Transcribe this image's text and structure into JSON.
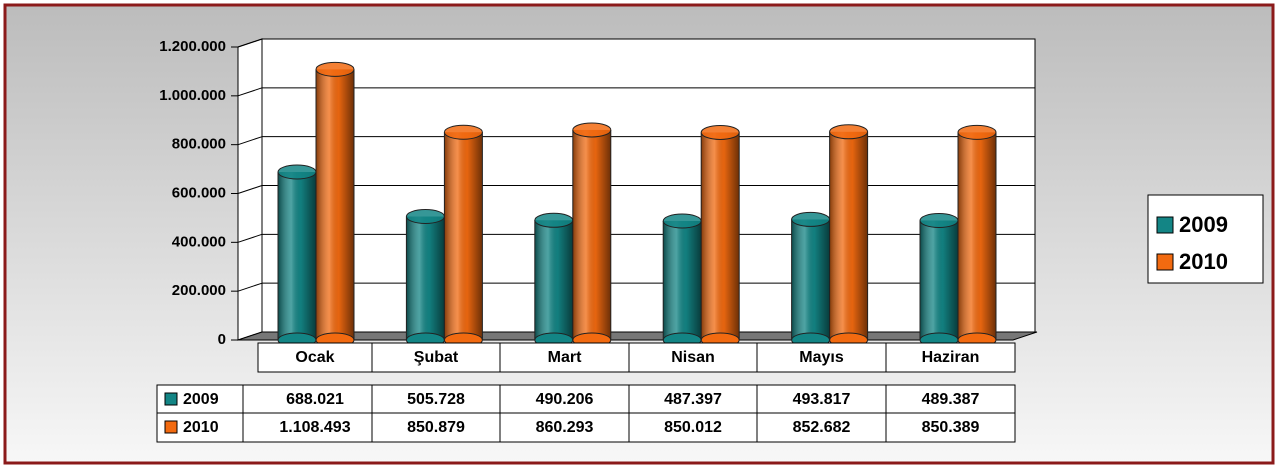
{
  "chart_data": {
    "type": "bar",
    "categories": [
      "Ocak",
      "Şubat",
      "Mart",
      "Nisan",
      "Mayıs",
      "Haziran"
    ],
    "series": [
      {
        "name": "2009",
        "color": "#138585",
        "values": [
          688021,
          505728,
          490206,
          487397,
          493817,
          489387
        ],
        "value_labels": [
          "688.021",
          "505.728",
          "490.206",
          "487.397",
          "493.817",
          "489.387"
        ]
      },
      {
        "name": "2010",
        "color": "#f26a10",
        "values": [
          1108493,
          850879,
          860293,
          850012,
          852682,
          850389
        ],
        "value_labels": [
          "1.108.493",
          "850.879",
          "860.293",
          "850.012",
          "852.682",
          "850.389"
        ]
      }
    ],
    "ylim": [
      0,
      1200000
    ],
    "yticks": [
      0,
      {
        "value": 200000,
        "label": "200.000"
      },
      {
        "value": 400000,
        "label": "400.000"
      },
      {
        "value": 600000,
        "label": "600.000"
      },
      {
        "value": 800000,
        "label": "800.000"
      },
      {
        "value": 1000000,
        "label": "1.000.000"
      },
      {
        "value": 1200000,
        "label": "1.200.000"
      }
    ],
    "grid": true,
    "legend": "right",
    "data_table": true
  }
}
